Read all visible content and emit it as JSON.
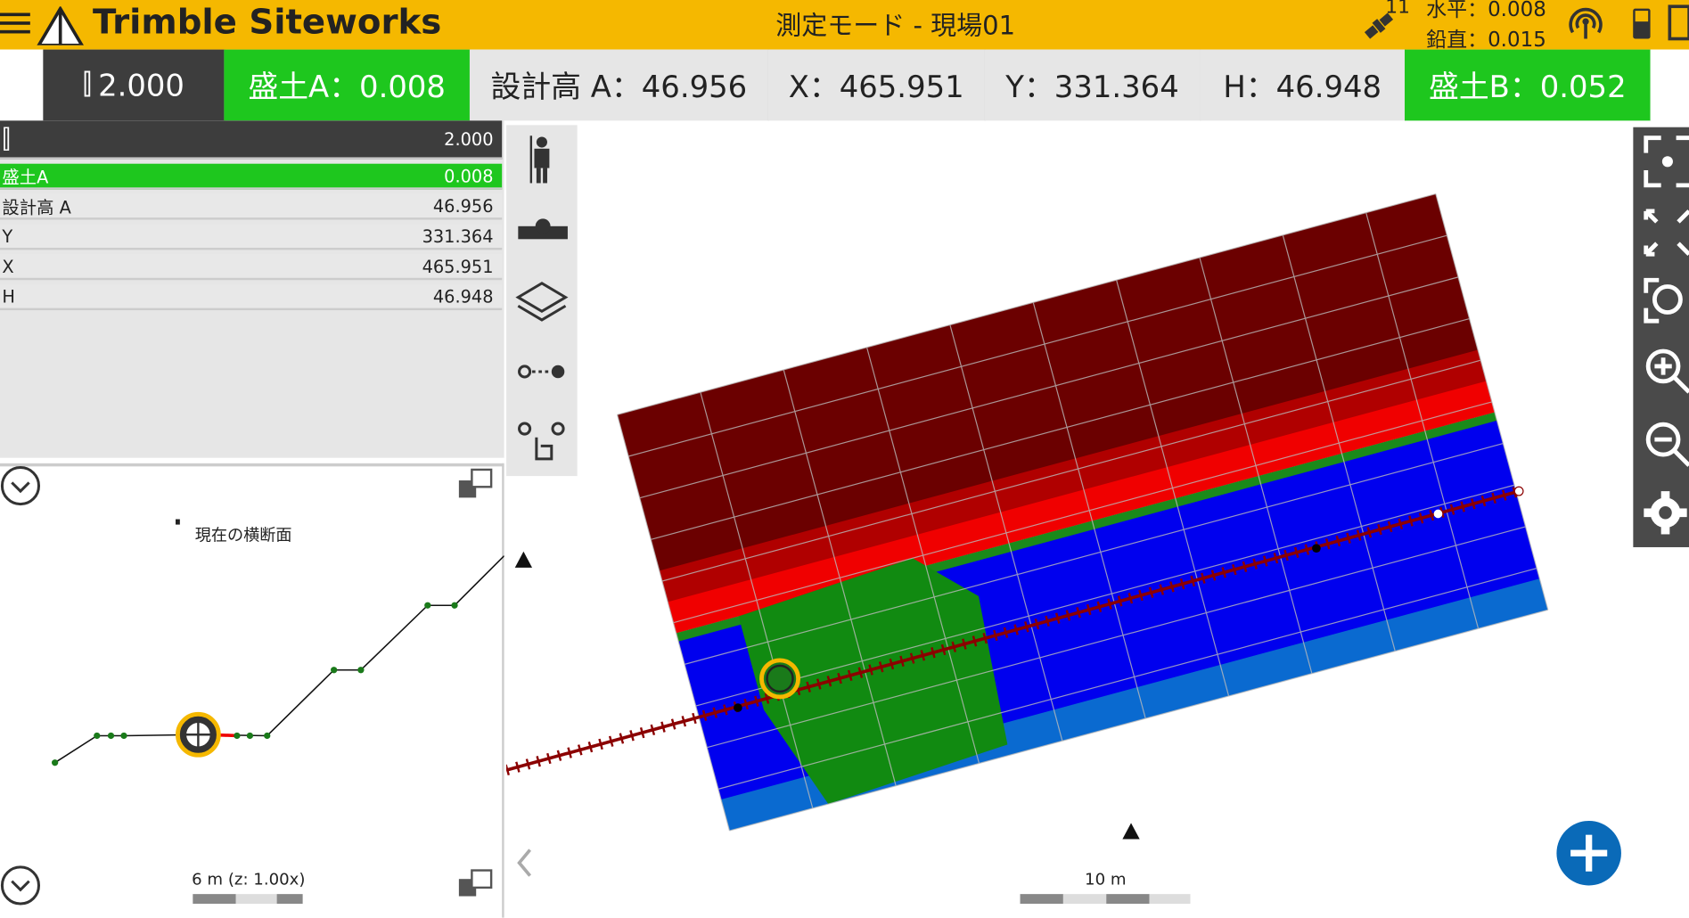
{
  "header": {
    "menu_title": "Trimble Siteworks",
    "mode": "測定モード - 現場01",
    "satellites": "11",
    "horizontal": "水平：0.008",
    "vertical": "鉛直：0.015"
  },
  "status_bar": {
    "rod_height": "2.000",
    "fill_a": "盛土A：0.008",
    "design_a": "設計高 A：46.956",
    "x": "X：465.951",
    "y": "Y：331.364",
    "h": "H：46.948",
    "fill_b": "盛土B：0.052"
  },
  "info_table": {
    "rows": [
      {
        "value": "2.000"
      },
      {
        "label": "盛土A",
        "value": "0.008"
      },
      {
        "label": "設計高 A",
        "value": "46.956"
      },
      {
        "label": "Y",
        "value": "331.364"
      },
      {
        "label": "X",
        "value": "465.951"
      },
      {
        "label": "H",
        "value": "46.948"
      }
    ]
  },
  "cross_section": {
    "title": "現在の横断面",
    "scale": "6 m  (z: 1.00x)"
  },
  "plan_view": {
    "scale": "10 m"
  }
}
